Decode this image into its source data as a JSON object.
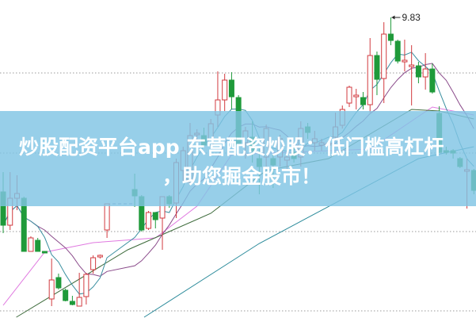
{
  "title_line1": "炒股配资平台app 东营配资炒股：低门槛高杠杆",
  "title_line2": "，助您掘金股市！",
  "chart_data": {
    "type": "candlestick",
    "grid": "horizontal dotted",
    "colors": {
      "up": "#d23a3f",
      "down": "#1f9a3a",
      "ma5": "#3a8fa0",
      "ma10": "#8a4a8a",
      "ma_pink": "#e07ae0",
      "ma_olive": "#3c6a3a",
      "ma_teal": "#2a8a9a",
      "banner": "#80c4e4"
    },
    "max_label": "9.83",
    "candles_ohlc": [
      [
        8.73,
        8.855,
        8.47,
        8.52
      ],
      [
        8.52,
        8.855,
        8.49,
        8.69
      ],
      [
        8.69,
        8.835,
        8.615,
        8.72
      ],
      [
        8.69,
        8.7,
        8.355,
        8.355
      ],
      [
        8.355,
        8.45,
        8.355,
        8.44
      ],
      [
        8.425,
        8.44,
        8.355,
        8.355
      ],
      [
        8.355,
        8.355,
        8.345,
        8.345
      ],
      [
        8.055,
        8.31,
        8.01,
        8.175
      ],
      [
        8.19,
        8.215,
        8.115,
        8.125
      ],
      [
        8.11,
        8.12,
        8.04,
        8.045
      ],
      [
        8.04,
        8.075,
        8.015,
        8.02
      ],
      [
        8.01,
        8.22,
        8.01,
        8.065
      ],
      [
        8.07,
        8.22,
        8.02,
        8.21
      ],
      [
        8.24,
        8.33,
        8.215,
        8.315
      ],
      [
        8.32,
        8.335,
        8.31,
        8.33
      ],
      [
        8.49,
        8.655,
        8.44,
        8.655
      ],
      null,
      null,
      null,
      [
        8.745,
        8.845,
        8.635,
        8.705
      ],
      [
        8.7,
        8.71,
        8.48,
        8.49
      ],
      [
        8.5,
        8.61,
        8.49,
        8.6
      ],
      [
        8.6,
        8.6,
        8.5,
        8.555
      ],
      [
        8.565,
        8.7,
        8.365,
        8.7
      ],
      [
        8.7,
        8.71,
        8.63,
        8.655
      ],
      [
        8.66,
        8.94,
        8.565,
        8.915
      ],
      [
        8.865,
        9.015,
        8.79,
        8.99
      ],
      [
        8.79,
        9.165,
        8.78,
        9.085
      ],
      [
        9.09,
        9.125,
        9.04,
        9.1
      ],
      [
        9.085,
        9.135,
        9.01,
        9.025
      ],
      [
        9.025,
        9.19,
        9.01,
        9.16
      ],
      [
        9.215,
        9.49,
        9.14,
        9.31
      ],
      [
        9.31,
        9.475,
        9.24,
        9.435
      ],
      [
        9.435,
        9.485,
        9.25,
        9.33
      ],
      [
        9.325,
        9.34,
        9.015,
        9.03
      ],
      [
        9.04,
        9.14,
        8.94,
        9.115
      ],
      [
        9.075,
        9.175,
        8.915,
        8.99
      ],
      [
        8.94,
        9.015,
        8.715,
        8.89
      ],
      [
        8.95,
        9.155,
        8.89,
        9.13
      ],
      [
        8.94,
        8.965,
        8.755,
        8.9
      ],
      [
        8.95,
        9.09,
        8.89,
        9.065
      ],
      [
        8.93,
        8.99,
        8.865,
        8.95
      ],
      [
        8.98,
        9.015,
        8.915,
        8.94
      ],
      [
        8.95,
        9.175,
        8.89,
        9.13
      ],
      [
        9.14,
        9.165,
        9.065,
        9.105
      ],
      [
        9.04,
        9.115,
        8.99,
        9.065
      ],
      [
        9.025,
        9.065,
        8.99,
        9.04
      ],
      [
        9.025,
        9.05,
        9.01,
        9.035
      ],
      [
        9.075,
        9.23,
        9.05,
        9.14
      ],
      [
        9.15,
        9.275,
        9.13,
        9.25
      ],
      [
        9.29,
        9.4,
        9.265,
        9.39
      ],
      [
        9.33,
        9.38,
        9.25,
        9.34
      ],
      [
        9.325,
        9.36,
        9.25,
        9.28
      ],
      [
        9.28,
        9.7,
        9.23,
        9.59
      ],
      [
        9.59,
        9.615,
        9.34,
        9.44
      ],
      [
        9.445,
        9.8,
        9.29,
        9.725
      ],
      [
        9.725,
        9.83,
        9.655,
        9.685
      ],
      [
        9.68,
        9.69,
        9.54,
        9.555
      ],
      [
        9.55,
        9.69,
        9.49,
        9.56
      ],
      [
        9.52,
        9.655,
        9.275,
        9.53
      ],
      [
        9.525,
        9.55,
        9.415,
        9.455
      ],
      [
        9.455,
        9.605,
        9.375,
        9.505
      ],
      [
        9.505,
        9.54,
        9.35,
        9.36
      ],
      [
        9.225,
        9.27,
        8.975,
        8.98
      ],
      [
        8.99,
        9.015,
        8.965,
        8.98
      ],
      [
        8.99,
        9.0,
        8.94,
        8.975
      ],
      [
        8.94,
        8.95,
        8.88,
        8.89
      ],
      [
        8.86,
        8.94,
        8.625,
        8.87
      ],
      [
        8.865,
        8.875,
        8.715,
        8.74
      ]
    ],
    "moving_averages": [
      {
        "key": "ma_pink",
        "points": [
          [
            0,
            8.015
          ],
          [
            6,
            8.35
          ],
          [
            13,
            8.41
          ],
          [
            22,
            8.44
          ],
          [
            28,
            8.64
          ],
          [
            33,
            8.965
          ],
          [
            53,
            9.0
          ],
          [
            62,
            9.265
          ],
          [
            68,
            9.215
          ]
        ]
      },
      {
        "key": "ma_olive",
        "points": [
          [
            0,
            7.89
          ],
          [
            18,
            8.365
          ],
          [
            30,
            8.595
          ],
          [
            38,
            8.865
          ],
          [
            47,
            8.94
          ],
          [
            59,
            9.25
          ],
          [
            63,
            9.24
          ],
          [
            68,
            9.19
          ]
        ]
      },
      {
        "key": "ma_teal",
        "points": [
          [
            15,
            7.79
          ],
          [
            37,
            8.405
          ],
          [
            60,
            8.94
          ],
          [
            68,
            9.015
          ]
        ]
      }
    ]
  }
}
